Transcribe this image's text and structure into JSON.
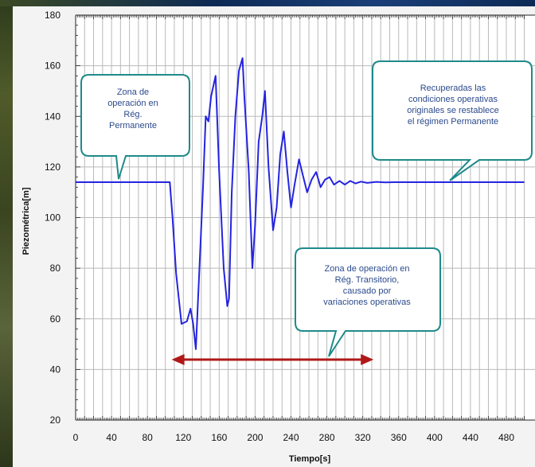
{
  "chart_data": {
    "type": "line",
    "xlabel": "Tiempo[s]",
    "ylabel": "Piezométrica[m]",
    "xlim": [
      0,
      500
    ],
    "ylim": [
      20,
      180
    ],
    "x_ticks": [
      "0",
      "40",
      "80",
      "120",
      "160",
      "200",
      "240",
      "280",
      "320",
      "360",
      "400",
      "440",
      "480"
    ],
    "y_ticks": [
      "20",
      "40",
      "60",
      "80",
      "100",
      "120",
      "140",
      "160",
      "180"
    ],
    "grid": true,
    "series": [
      {
        "color": "#2424e0",
        "points": [
          [
            0,
            114
          ],
          [
            105,
            114
          ],
          [
            108,
            100
          ],
          [
            112,
            78
          ],
          [
            118,
            58
          ],
          [
            124,
            59
          ],
          [
            128,
            64
          ],
          [
            131,
            58
          ],
          [
            134,
            48
          ],
          [
            138,
            80
          ],
          [
            142,
            112
          ],
          [
            145,
            140
          ],
          [
            148,
            138
          ],
          [
            151,
            148
          ],
          [
            156,
            156
          ],
          [
            160,
            118
          ],
          [
            165,
            80
          ],
          [
            169,
            65
          ],
          [
            171,
            68
          ],
          [
            174,
            110
          ],
          [
            178,
            140
          ],
          [
            182,
            158
          ],
          [
            186,
            163
          ],
          [
            188,
            148
          ],
          [
            193,
            118
          ],
          [
            197,
            80
          ],
          [
            200,
            97
          ],
          [
            204,
            130
          ],
          [
            208,
            140
          ],
          [
            211,
            150
          ],
          [
            215,
            120
          ],
          [
            220,
            95
          ],
          [
            224,
            104
          ],
          [
            228,
            125
          ],
          [
            232,
            134
          ],
          [
            236,
            118
          ],
          [
            240,
            104
          ],
          [
            244,
            113
          ],
          [
            249,
            123
          ],
          [
            253,
            117
          ],
          [
            258,
            110
          ],
          [
            263,
            115
          ],
          [
            268,
            118
          ],
          [
            273,
            112
          ],
          [
            278,
            115
          ],
          [
            283,
            116
          ],
          [
            288,
            113
          ],
          [
            294,
            114.5
          ],
          [
            300,
            113
          ],
          [
            306,
            114.5
          ],
          [
            312,
            113.5
          ],
          [
            318,
            114.2
          ],
          [
            325,
            113.7
          ],
          [
            335,
            114.1
          ],
          [
            345,
            113.9
          ],
          [
            355,
            114
          ],
          [
            400,
            114
          ],
          [
            500,
            114
          ]
        ]
      }
    ],
    "annotations": [
      {
        "text": "Zona de\noperación en\nRég.\nPermanente"
      },
      {
        "text": "Recuperadas las\ncondiciones operativas\noriginales se restablece\nel régimen Permanente"
      },
      {
        "text": "Zona de operación en\nRég. Transitorio,\ncausado por\nvariaciones operativas"
      }
    ],
    "arrow_range": [
      107,
      332
    ],
    "colors": {
      "line": "#2424e0",
      "callout_border": "#1f8a8a",
      "callout_text": "#2b4a8c",
      "arrow": "#b01818",
      "grid": "#b9b9b9",
      "panel": "#f3f3f3"
    }
  }
}
